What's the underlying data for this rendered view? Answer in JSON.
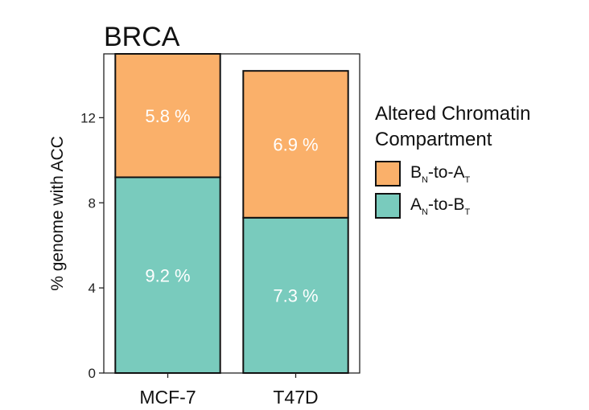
{
  "chart_data": {
    "type": "bar",
    "stacked": true,
    "title": "BRCA",
    "xlabel": "",
    "ylabel": "% genome with ACC",
    "categories": [
      "MCF-7",
      "T47D"
    ],
    "ylim": [
      0,
      15
    ],
    "yticks": [
      0,
      4,
      8,
      12
    ],
    "series": [
      {
        "name": "AN-to-BT",
        "color": "#79cbbd",
        "values": [
          9.2,
          7.3
        ],
        "labels": [
          "9.2 %",
          "7.3 %"
        ]
      },
      {
        "name": "BN-to-AT",
        "color": "#fab06a",
        "values": [
          5.8,
          6.9
        ],
        "labels": [
          "5.8 %",
          "6.9 %"
        ]
      }
    ],
    "legend": {
      "title_line1": "Altered Chromatin",
      "title_line2": "Compartment",
      "placement": "right",
      "items": [
        {
          "base1": "B",
          "sub1": "N",
          "mid": "-to-",
          "base2": "A",
          "sub2": "T",
          "color": "#fab06a"
        },
        {
          "base1": "A",
          "sub1": "N",
          "mid": "-to-",
          "base2": "B",
          "sub2": "T",
          "color": "#79cbbd"
        }
      ]
    },
    "grid": false
  }
}
